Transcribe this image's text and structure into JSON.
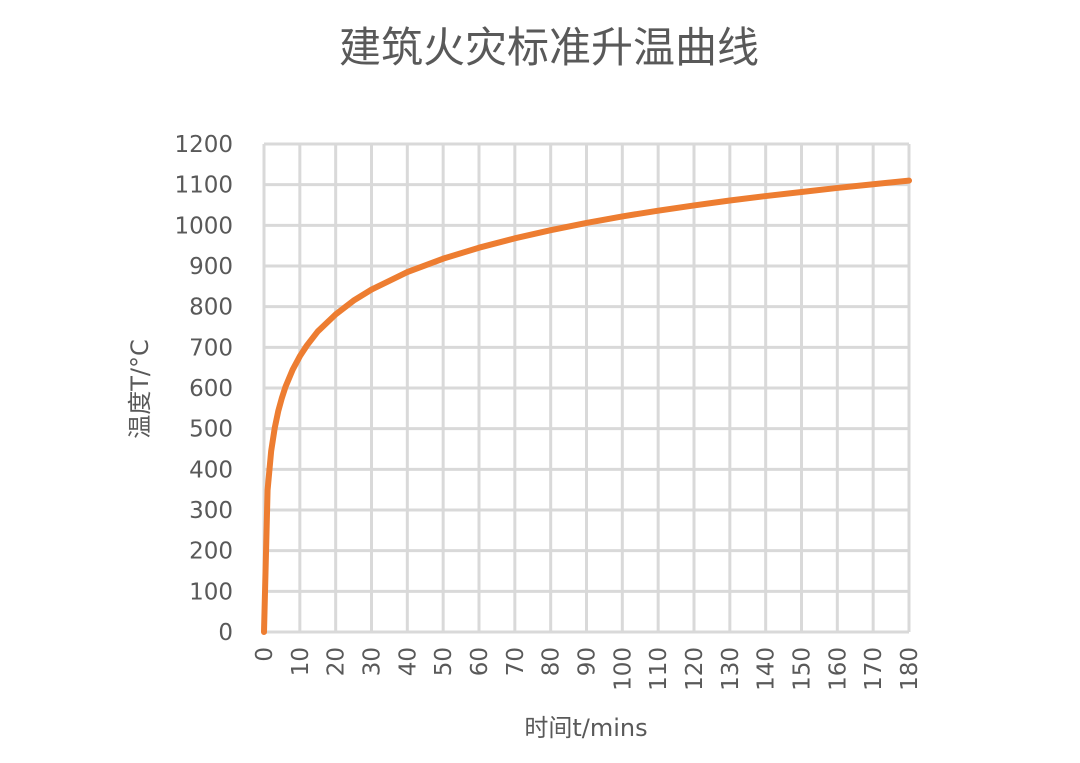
{
  "chart_data": {
    "type": "line",
    "title": "建筑火灾标准升温曲线",
    "xlabel": "时间t/mins",
    "ylabel": "温度T/°C",
    "xlim": [
      0,
      180
    ],
    "ylim": [
      0,
      1200
    ],
    "x_ticks": [
      0,
      10,
      20,
      30,
      40,
      50,
      60,
      70,
      80,
      90,
      100,
      110,
      120,
      130,
      140,
      150,
      160,
      170,
      180
    ],
    "y_ticks": [
      0,
      100,
      200,
      300,
      400,
      500,
      600,
      700,
      800,
      900,
      1000,
      1100,
      1200
    ],
    "grid": true,
    "legend": "none",
    "series": [
      {
        "color": "#ed7d31",
        "x": [
          1,
          2,
          3,
          4,
          5,
          6,
          8,
          10,
          12,
          15,
          20,
          25,
          30,
          40,
          50,
          60,
          70,
          80,
          90,
          100,
          110,
          120,
          130,
          140,
          150,
          160,
          170,
          180
        ],
        "y": [
          349,
          445,
          502,
          544,
          576,
          603,
          645,
          678,
          705,
          739,
          781,
          815,
          842,
          885,
          918,
          945,
          968,
          988,
          1006,
          1022,
          1036,
          1049,
          1061,
          1072,
          1082,
          1092,
          1101,
          1110
        ]
      }
    ]
  }
}
